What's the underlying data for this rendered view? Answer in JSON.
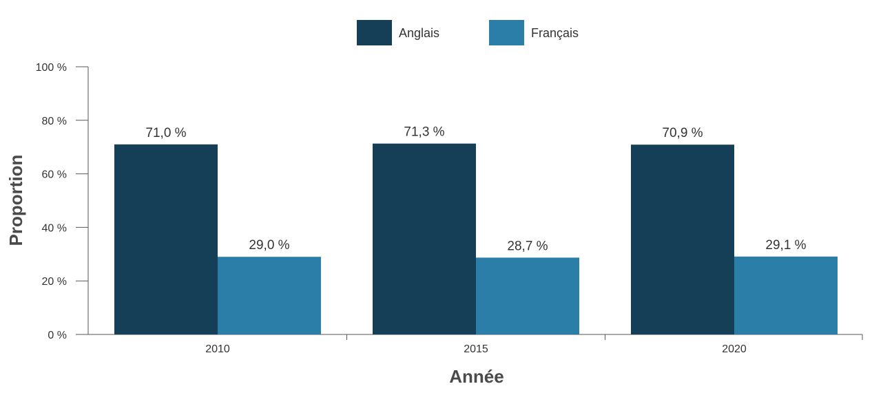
{
  "chart_data": {
    "type": "bar",
    "title": "",
    "xlabel": "Année",
    "ylabel": "Proportion",
    "categories": [
      "2010",
      "2015",
      "2020"
    ],
    "series": [
      {
        "name": "Anglais",
        "color": "#153f56",
        "values": [
          71.0,
          71.3,
          70.9
        ],
        "labels": [
          "71,0 %",
          "71,3 %",
          "70,9 %"
        ]
      },
      {
        "name": "Français",
        "color": "#2a7ea8",
        "values": [
          29.0,
          28.7,
          29.1
        ],
        "labels": [
          "29,0 %",
          "28,7 %",
          "29,1 %"
        ]
      }
    ],
    "ylim": [
      0,
      100
    ],
    "yticks": [
      0,
      20,
      40,
      60,
      80,
      100
    ],
    "ytick_labels": [
      "0 %",
      "20 %",
      "40 %",
      "60 %",
      "80 %",
      "100 %"
    ],
    "grid": false,
    "legend_position": "top-center",
    "axis_color": "#555555",
    "text_color": "#333333"
  }
}
